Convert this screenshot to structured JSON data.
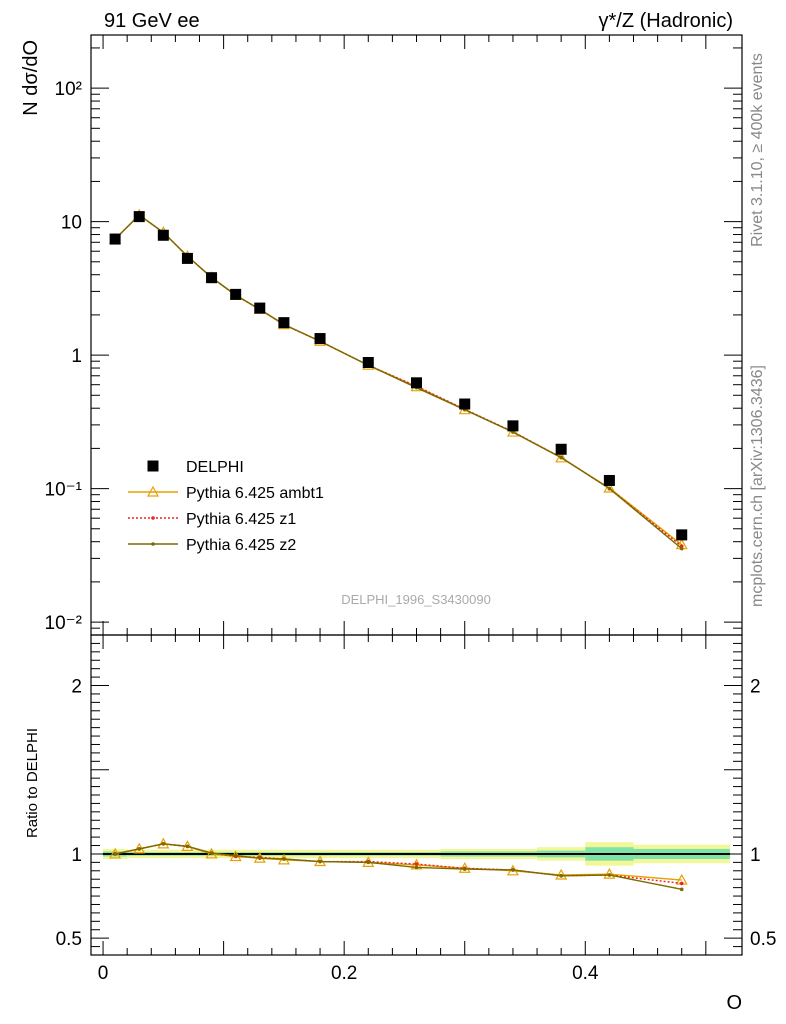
{
  "header": {
    "left_title": "91 GeV ee",
    "right_title": "γ*/Z (Hadronic)"
  },
  "side_labels": {
    "rivet": "Rivet 3.1.10, ≥ 400k events",
    "mcplots": "mcplots.cern.ch [arXiv:1306.3436]"
  },
  "analysis_tag": "DELPHI_1996_S3430090",
  "chart_data": [
    {
      "type": "scatter",
      "panel": "main",
      "ylabel": "N dσ/dO",
      "xlabel": "O",
      "yscale": "log",
      "ylim": [
        0.008,
        250
      ],
      "xlim": [
        -0.01,
        0.53
      ],
      "ytick_labels": [
        "10⁻²",
        "10⁻¹",
        "1",
        "10",
        "10²"
      ],
      "ytick_values": [
        0.01,
        0.1,
        1,
        10,
        100
      ],
      "legend_position": "lower-left",
      "series": [
        {
          "name": "DELPHI",
          "style": "marker-square",
          "color": "#000000",
          "x": [
            0.01,
            0.03,
            0.05,
            0.07,
            0.09,
            0.11,
            0.13,
            0.15,
            0.18,
            0.22,
            0.26,
            0.3,
            0.34,
            0.38,
            0.42,
            0.48
          ],
          "y": [
            7.4,
            10.9,
            7.9,
            5.3,
            3.8,
            2.85,
            2.25,
            1.75,
            1.33,
            0.88,
            0.62,
            0.43,
            0.295,
            0.197,
            0.115,
            0.045
          ]
        },
        {
          "name": "Pythia 6.425 ambt1",
          "style": "line-open-triangle",
          "color": "#e8a000",
          "x": [
            0.01,
            0.03,
            0.05,
            0.07,
            0.09,
            0.11,
            0.13,
            0.15,
            0.18,
            0.22,
            0.26,
            0.3,
            0.34,
            0.38,
            0.42,
            0.48
          ],
          "y": [
            7.4,
            11.2,
            8.3,
            5.5,
            3.82,
            2.8,
            2.2,
            1.69,
            1.27,
            0.84,
            0.58,
            0.39,
            0.265,
            0.17,
            0.101,
            0.038
          ]
        },
        {
          "name": "Pythia 6.425 z1",
          "style": "dotted-line-dot",
          "color": "#ee2222",
          "x": [
            0.01,
            0.03,
            0.05,
            0.07,
            0.09,
            0.11,
            0.13,
            0.15,
            0.18,
            0.22,
            0.26,
            0.3,
            0.34,
            0.38,
            0.42,
            0.48
          ],
          "y": [
            7.4,
            11.2,
            8.3,
            5.5,
            3.82,
            2.8,
            2.2,
            1.69,
            1.27,
            0.84,
            0.585,
            0.393,
            0.267,
            0.171,
            0.1,
            0.037
          ]
        },
        {
          "name": "Pythia 6.425 z2",
          "style": "solid-line-dot",
          "color": "#7a6a00",
          "x": [
            0.01,
            0.03,
            0.05,
            0.07,
            0.09,
            0.11,
            0.13,
            0.15,
            0.18,
            0.22,
            0.26,
            0.3,
            0.34,
            0.38,
            0.42,
            0.48
          ],
          "y": [
            7.4,
            11.2,
            8.3,
            5.5,
            3.82,
            2.82,
            2.2,
            1.7,
            1.27,
            0.84,
            0.57,
            0.39,
            0.265,
            0.171,
            0.1,
            0.0355
          ]
        }
      ]
    },
    {
      "type": "line",
      "panel": "ratio",
      "ylabel": "Ratio to DELPHI",
      "xlabel": "O",
      "ylim": [
        0.4,
        2.3
      ],
      "xlim": [
        -0.01,
        0.53
      ],
      "ytick_labels": [
        "0.5",
        "1",
        "2"
      ],
      "ytick_values": [
        0.5,
        1,
        2
      ],
      "xtick_labels": [
        "0",
        "0.2",
        "0.4"
      ],
      "xtick_values": [
        0,
        0.2,
        0.4
      ],
      "band_colors": {
        "inner": "#7fe3a6",
        "outer": "#f2f79a"
      },
      "bands": [
        {
          "x0": -0.0,
          "x1": 0.02,
          "inner": [
            0.985,
            1.015
          ],
          "outer": [
            0.97,
            1.03
          ]
        },
        {
          "x0": 0.02,
          "x1": 0.16,
          "inner": [
            0.99,
            1.01
          ],
          "outer": [
            0.975,
            1.025
          ]
        },
        {
          "x0": 0.16,
          "x1": 0.28,
          "inner": [
            0.99,
            1.01
          ],
          "outer": [
            0.975,
            1.025
          ]
        },
        {
          "x0": 0.28,
          "x1": 0.36,
          "inner": [
            0.985,
            1.015
          ],
          "outer": [
            0.97,
            1.03
          ]
        },
        {
          "x0": 0.36,
          "x1": 0.4,
          "inner": [
            0.98,
            1.02
          ],
          "outer": [
            0.96,
            1.04
          ]
        },
        {
          "x0": 0.4,
          "x1": 0.44,
          "inner": [
            0.96,
            1.04
          ],
          "outer": [
            0.93,
            1.07
          ]
        },
        {
          "x0": 0.44,
          "x1": 0.52,
          "inner": [
            0.97,
            1.03
          ],
          "outer": [
            0.945,
            1.055
          ]
        }
      ],
      "series": [
        {
          "name": "Pythia 6.425 ambt1",
          "style": "line-open-triangle",
          "color": "#e8a000",
          "x": [
            0.01,
            0.03,
            0.05,
            0.07,
            0.09,
            0.11,
            0.13,
            0.15,
            0.18,
            0.22,
            0.26,
            0.3,
            0.34,
            0.38,
            0.42,
            0.48
          ],
          "y": [
            1.0,
            1.03,
            1.06,
            1.045,
            1.0,
            0.985,
            0.975,
            0.965,
            0.955,
            0.95,
            0.935,
            0.915,
            0.9,
            0.875,
            0.88,
            0.845
          ]
        },
        {
          "name": "Pythia 6.425 z1",
          "style": "dotted-line-dot",
          "color": "#ee2222",
          "x": [
            0.01,
            0.03,
            0.05,
            0.07,
            0.09,
            0.11,
            0.13,
            0.15,
            0.18,
            0.22,
            0.26,
            0.3,
            0.34,
            0.38,
            0.42,
            0.48
          ],
          "y": [
            1.0,
            1.03,
            1.06,
            1.045,
            1.005,
            0.985,
            0.98,
            0.97,
            0.955,
            0.955,
            0.94,
            0.915,
            0.905,
            0.87,
            0.875,
            0.825
          ]
        },
        {
          "name": "Pythia 6.425 z2",
          "style": "solid-line-dot",
          "color": "#7a6a00",
          "x": [
            0.01,
            0.03,
            0.05,
            0.07,
            0.09,
            0.11,
            0.13,
            0.15,
            0.18,
            0.22,
            0.26,
            0.3,
            0.34,
            0.38,
            0.42,
            0.48
          ],
          "y": [
            1.0,
            1.03,
            1.06,
            1.045,
            1.005,
            0.99,
            0.975,
            0.97,
            0.955,
            0.95,
            0.92,
            0.91,
            0.905,
            0.87,
            0.875,
            0.79
          ]
        }
      ]
    }
  ]
}
